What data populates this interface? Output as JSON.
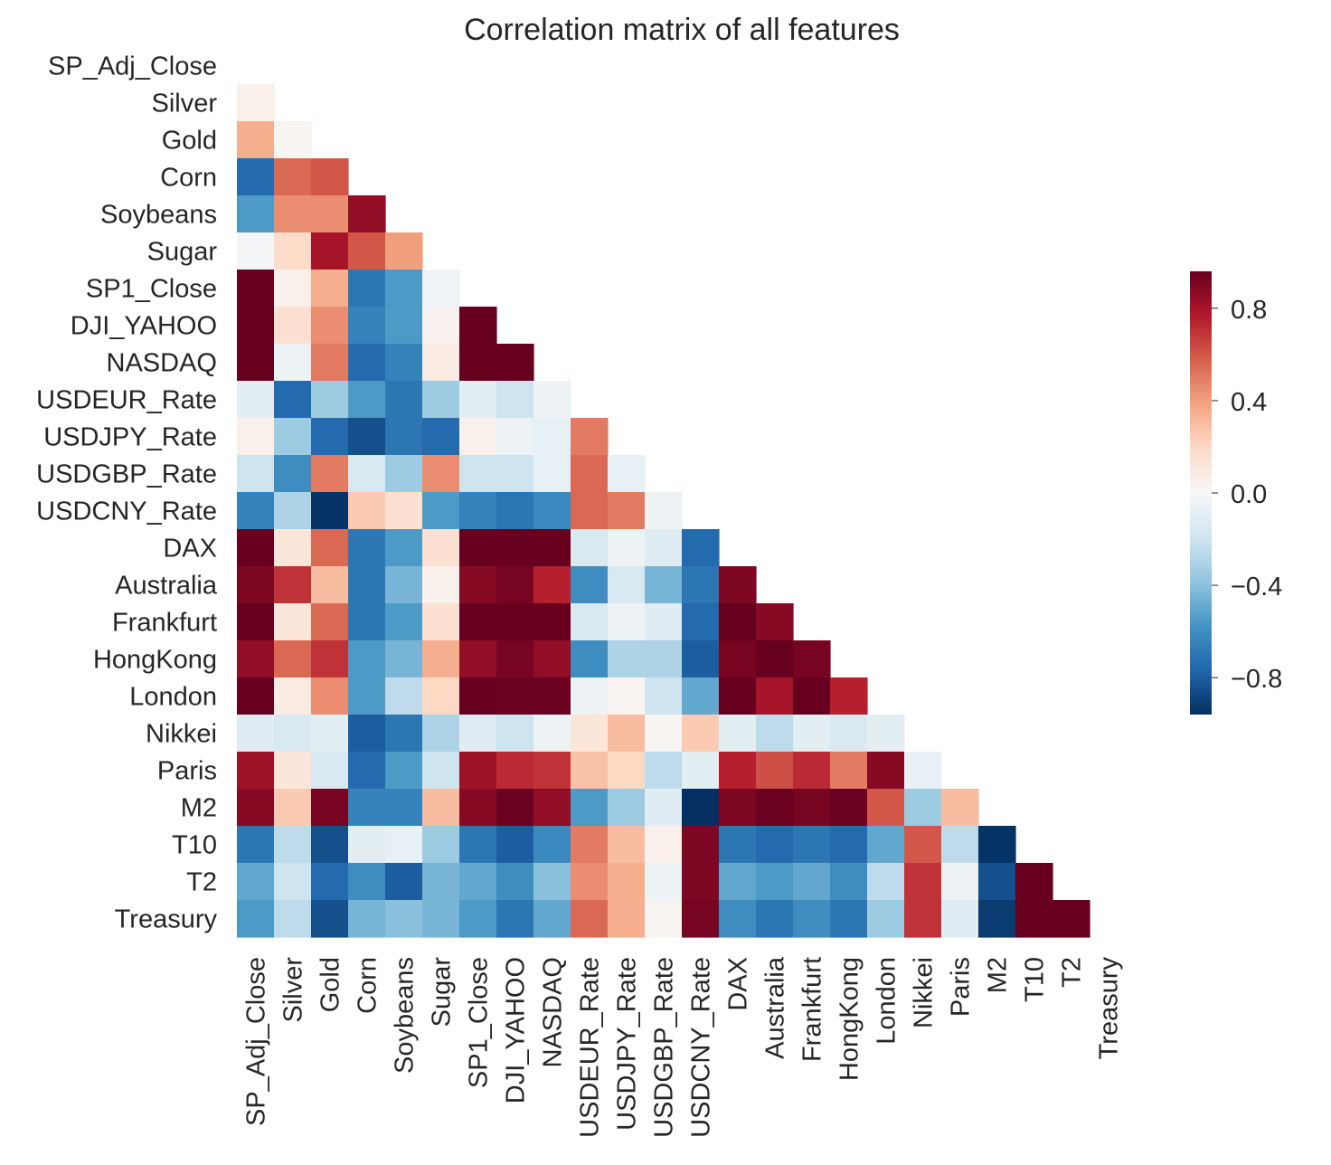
{
  "chart_data": {
    "type": "heatmap",
    "title": "Correlation matrix of all features",
    "labels": [
      "SP_Adj_Close",
      "Silver",
      "Gold",
      "Corn",
      "Soybeans",
      "Sugar",
      "SP1_Close",
      "DJI_YAHOO",
      "NASDAQ",
      "USDEUR_Rate",
      "USDJPY_Rate",
      "USDGBP_Rate",
      "USDCNY_Rate",
      "DAX",
      "Australia",
      "Frankfurt",
      "HongKong",
      "London",
      "Nikkei",
      "Paris",
      "M2",
      "T10",
      "T2",
      "Treasury"
    ],
    "mask": "upper-triangle-including-diagonal",
    "matrix_lower": [
      [],
      [
        0.05
      ],
      [
        0.35,
        0.02
      ],
      [
        -0.75,
        0.55,
        0.6
      ],
      [
        -0.55,
        0.45,
        0.45,
        0.85
      ],
      [
        -0.02,
        0.18,
        0.8,
        0.6,
        0.4
      ],
      [
        0.99,
        0.05,
        0.35,
        -0.7,
        -0.55,
        -0.04
      ],
      [
        0.99,
        0.15,
        0.45,
        -0.65,
        -0.55,
        0.04,
        0.99
      ],
      [
        0.98,
        -0.05,
        0.5,
        -0.75,
        -0.65,
        0.08,
        0.98,
        0.97
      ],
      [
        -0.1,
        -0.75,
        -0.35,
        -0.55,
        -0.7,
        -0.35,
        -0.1,
        -0.2,
        -0.05
      ],
      [
        0.05,
        -0.35,
        -0.75,
        -0.85,
        -0.7,
        -0.75,
        0.05,
        -0.05,
        -0.08,
        0.5
      ],
      [
        -0.2,
        -0.6,
        0.5,
        -0.15,
        -0.35,
        0.45,
        -0.2,
        -0.2,
        -0.08,
        0.55,
        -0.08
      ],
      [
        -0.65,
        -0.3,
        -0.95,
        0.25,
        0.15,
        -0.55,
        -0.65,
        -0.7,
        -0.62,
        0.55,
        0.5,
        -0.05
      ],
      [
        0.98,
        0.12,
        0.55,
        -0.7,
        -0.55,
        0.15,
        0.98,
        0.98,
        0.97,
        -0.15,
        -0.05,
        -0.12,
        -0.75
      ],
      [
        0.9,
        0.7,
        0.3,
        -0.7,
        -0.45,
        0.05,
        0.88,
        0.92,
        0.75,
        -0.6,
        -0.15,
        -0.45,
        -0.7,
        0.9
      ],
      [
        0.98,
        0.12,
        0.55,
        -0.7,
        -0.55,
        0.15,
        0.98,
        0.98,
        0.98,
        -0.15,
        -0.05,
        -0.12,
        -0.75,
        0.99,
        0.88
      ],
      [
        0.85,
        0.55,
        0.7,
        -0.55,
        -0.45,
        0.35,
        0.85,
        0.92,
        0.85,
        -0.6,
        -0.3,
        -0.3,
        -0.8,
        0.92,
        0.97,
        0.92
      ],
      [
        0.99,
        0.08,
        0.45,
        -0.55,
        -0.25,
        0.2,
        0.99,
        0.95,
        0.95,
        -0.05,
        0.03,
        -0.2,
        -0.5,
        0.97,
        0.8,
        0.97,
        0.75
      ],
      [
        -0.12,
        -0.15,
        -0.1,
        -0.8,
        -0.7,
        -0.3,
        -0.12,
        -0.2,
        -0.05,
        0.12,
        0.3,
        0.02,
        0.25,
        -0.1,
        -0.25,
        -0.1,
        -0.15,
        -0.1
      ],
      [
        0.82,
        0.12,
        -0.15,
        -0.75,
        -0.55,
        -0.2,
        0.82,
        0.72,
        0.7,
        0.28,
        0.2,
        -0.25,
        -0.1,
        0.75,
        0.62,
        0.72,
        0.5,
        0.88,
        -0.08
      ],
      [
        0.88,
        0.25,
        0.92,
        -0.65,
        -0.65,
        0.3,
        0.88,
        0.95,
        0.85,
        -0.55,
        -0.35,
        -0.12,
        -0.98,
        0.9,
        0.95,
        0.92,
        0.95,
        0.6,
        -0.35,
        0.3
      ],
      [
        -0.7,
        -0.25,
        -0.85,
        -0.1,
        -0.08,
        -0.35,
        -0.7,
        -0.8,
        -0.62,
        0.5,
        0.3,
        0.05,
        0.9,
        -0.7,
        -0.75,
        -0.7,
        -0.75,
        -0.5,
        0.6,
        -0.25,
        -0.95
      ],
      [
        -0.5,
        -0.2,
        -0.75,
        -0.6,
        -0.8,
        -0.45,
        -0.5,
        -0.6,
        -0.4,
        0.45,
        0.35,
        -0.05,
        0.9,
        -0.5,
        -0.55,
        -0.5,
        -0.6,
        -0.25,
        0.7,
        -0.05,
        -0.85,
        0.98
      ],
      [
        -0.55,
        -0.25,
        -0.85,
        -0.45,
        -0.4,
        -0.45,
        -0.55,
        -0.7,
        -0.5,
        0.55,
        0.35,
        0.03,
        0.92,
        -0.6,
        -0.7,
        -0.6,
        -0.7,
        -0.35,
        0.7,
        -0.12,
        -0.92,
        0.98,
        0.99
      ]
    ],
    "vmin": -0.96,
    "vmax": 0.96,
    "colormap": "RdBu_r",
    "colorbar": {
      "ticks": [
        0.8,
        0.4,
        0.0,
        -0.4,
        -0.8
      ],
      "tick_labels": [
        "0.8",
        "0.4",
        "0.0",
        "−0.4",
        "−0.8"
      ]
    },
    "grid": false,
    "legend": "colorbar-right"
  }
}
